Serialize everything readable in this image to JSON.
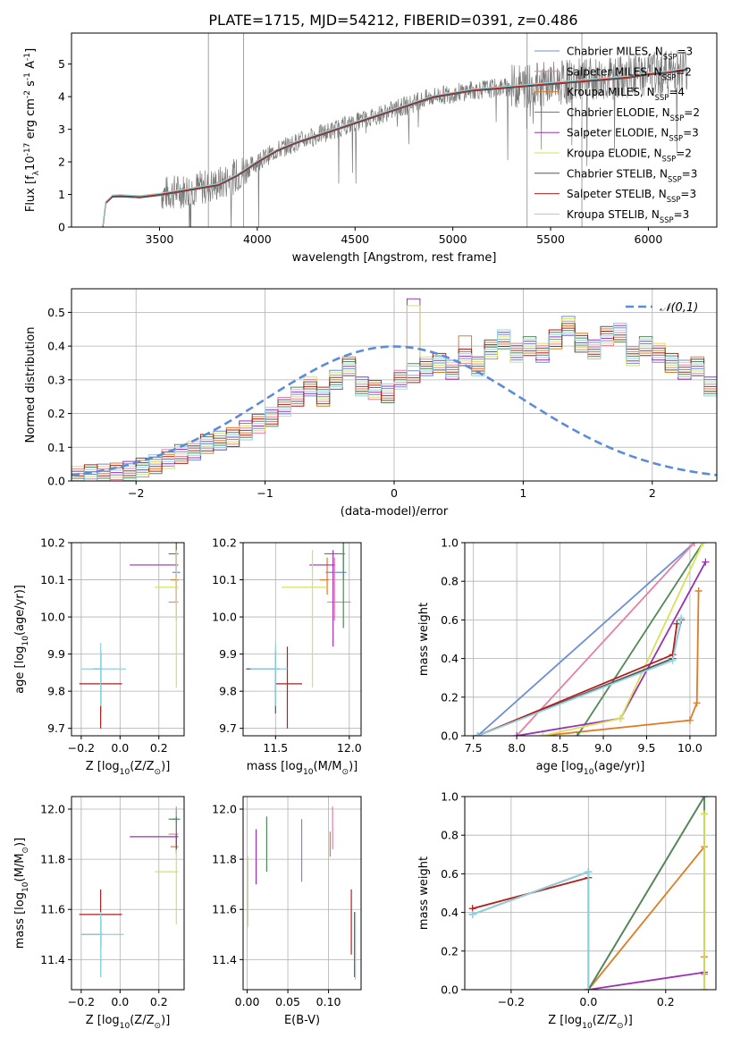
{
  "title": "PLATE=1715, MJD=54212, FIBERID=0391, z=0.486",
  "series": [
    {
      "name": "Chabrier MILES, N$_{SSP}$=3",
      "color": "#6b8fd6"
    },
    {
      "name": "Salpeter MILES, N$_{SSP}$=2",
      "color": "#e87fa3"
    },
    {
      "name": "Kroupa MILES, N$_{SSP}$=4",
      "color": "#e07b24"
    },
    {
      "name": "Chabrier ELODIE, N$_{SSP}$=2",
      "color": "#4e8a55"
    },
    {
      "name": "Salpeter ELODIE, N$_{SSP}$=3",
      "color": "#9b30b5"
    },
    {
      "name": "Kroupa ELODIE, N$_{SSP}$=2",
      "color": "#d7e256"
    },
    {
      "name": "Chabrier STELIB, N$_{SSP}$=3",
      "color": "#555555"
    },
    {
      "name": "Salpeter STELIB, N$_{SSP}$=3",
      "color": "#b31e1e"
    },
    {
      "name": "Kroupa STELIB, N$_{SSP}$=3",
      "color": "#8ed3e0"
    }
  ],
  "chart_data": [
    {
      "id": "spectrum",
      "type": "line",
      "xlabel": "wavelength [Angstrom, rest frame]",
      "ylabel": "Flux [f$_\\lambda$10$^{-17}$ erg cm$^{-2}$ s$^{-1}$ A$^{-1}$]",
      "xlim": [
        3050,
        6350
      ],
      "ylim": [
        0,
        5.95
      ],
      "xticks": [
        3500,
        4000,
        4500,
        5000,
        5500,
        6000
      ],
      "yticks": [
        0,
        1,
        2,
        3,
        4,
        5
      ],
      "legend": "right",
      "grid": false,
      "model_curve": [
        [
          3210,
          0.0
        ],
        [
          3225,
          0.75
        ],
        [
          3260,
          0.95
        ],
        [
          3300,
          0.96
        ],
        [
          3400,
          0.93
        ],
        [
          3500,
          1.0
        ],
        [
          3600,
          1.1
        ],
        [
          3700,
          1.2
        ],
        [
          3800,
          1.3
        ],
        [
          3900,
          1.6
        ],
        [
          4000,
          2.0
        ],
        [
          4100,
          2.35
        ],
        [
          4200,
          2.6
        ],
        [
          4300,
          2.8
        ],
        [
          4400,
          3.0
        ],
        [
          4500,
          3.2
        ],
        [
          4600,
          3.4
        ],
        [
          4700,
          3.6
        ],
        [
          4800,
          3.8
        ],
        [
          4900,
          4.0
        ],
        [
          5000,
          4.1
        ],
        [
          5100,
          4.2
        ],
        [
          5200,
          4.25
        ],
        [
          5300,
          4.3
        ],
        [
          5400,
          4.35
        ],
        [
          5500,
          4.4
        ],
        [
          5600,
          4.45
        ],
        [
          5700,
          4.5
        ],
        [
          5800,
          4.55
        ],
        [
          5900,
          4.6
        ],
        [
          6000,
          4.7
        ],
        [
          6100,
          4.75
        ],
        [
          6200,
          4.85
        ]
      ],
      "data_start": 3510,
      "data_end": 6200
    },
    {
      "id": "residuals",
      "type": "histogram",
      "xlabel": "(data-model)/error",
      "ylabel": "Normed distribution",
      "xlim": [
        -2.5,
        2.5
      ],
      "ylim": [
        0,
        0.57
      ],
      "xticks": [
        -2,
        -1,
        0,
        1,
        2
      ],
      "yticks": [
        0.0,
        0.1,
        0.2,
        0.3,
        0.4,
        0.5
      ],
      "grid": true,
      "reference": {
        "name": "$\\mathcal{N}(0,1)$",
        "color": "#5b8dd6"
      },
      "bin_width": 0.1,
      "base": [
        0.015,
        0.02,
        0.022,
        0.025,
        0.03,
        0.04,
        0.05,
        0.065,
        0.08,
        0.09,
        0.11,
        0.12,
        0.13,
        0.15,
        0.17,
        0.19,
        0.22,
        0.25,
        0.28,
        0.25,
        0.3,
        0.34,
        0.28,
        0.27,
        0.26,
        0.3,
        0.32,
        0.34,
        0.35,
        0.33,
        0.37,
        0.34,
        0.39,
        0.42,
        0.38,
        0.4,
        0.38,
        0.42,
        0.46,
        0.41,
        0.39,
        0.43,
        0.44,
        0.37,
        0.4,
        0.38,
        0.35,
        0.33,
        0.34,
        0.28,
        0.32,
        0.3,
        0.26,
        0.24,
        0.26,
        0.22,
        0.2,
        0.24,
        0.26,
        0.25,
        0.2,
        0.18,
        0.19,
        0.14,
        0.16,
        0.12,
        0.11,
        0.1,
        0.08,
        0.07,
        0.09,
        0.06,
        0.05,
        0.055,
        0.05
      ],
      "spikes": [
        {
          "series": 4,
          "bin": 26,
          "value": 0.54
        },
        {
          "series": 5,
          "bin": 26,
          "value": 0.52
        },
        {
          "series": 2,
          "bin": 30,
          "value": 0.43
        }
      ]
    },
    {
      "id": "z_age",
      "type": "scatter",
      "xlabel": "Z [log$_{10}$(Z/Z$_\\odot$)]",
      "ylabel": "age  [log$_{10}$(age/yr)]",
      "xlim": [
        -0.25,
        0.33
      ],
      "ylim": [
        9.68,
        10.2
      ],
      "xticks": [
        -0.2,
        0.0,
        0.2
      ],
      "yticks": [
        9.7,
        9.8,
        9.9,
        10.0,
        10.1,
        10.2
      ],
      "grid": true,
      "points": [
        {
          "s": 0,
          "x": 0.29,
          "y": 10.12,
          "ex": [
            0.02,
            0.02
          ],
          "ey": [
            0.02,
            0.08
          ]
        },
        {
          "s": 1,
          "x": 0.29,
          "y": 10.04,
          "ex": [
            0.04,
            0.01
          ],
          "ey": [
            0.05,
            0.12
          ]
        },
        {
          "s": 2,
          "x": 0.29,
          "y": 10.1,
          "ex": [
            0.03,
            0.01
          ],
          "ey": [
            0.06,
            0.1
          ]
        },
        {
          "s": 3,
          "x": 0.29,
          "y": 10.17,
          "ex": [
            0.04,
            0.01
          ],
          "ey": [
            0.08,
            0.04
          ]
        },
        {
          "s": 4,
          "x": 0.29,
          "y": 10.14,
          "ex": [
            0.24,
            0.01
          ],
          "ey": [
            0.1,
            0.04
          ]
        },
        {
          "s": 5,
          "x": 0.29,
          "y": 10.08,
          "ex": [
            0.11,
            0.01
          ],
          "ey": [
            0.27,
            0.1
          ]
        },
        {
          "s": 6,
          "x": -0.1,
          "y": 9.86,
          "ex": [
            0.04,
            0.01
          ],
          "ey": [
            0.12,
            0.05
          ]
        },
        {
          "s": 7,
          "x": -0.1,
          "y": 9.82,
          "ex": [
            0.11,
            0.11
          ],
          "ey": [
            0.12,
            0.08
          ]
        },
        {
          "s": 8,
          "x": -0.1,
          "y": 9.86,
          "ex": [
            0.1,
            0.13
          ],
          "ey": [
            0.1,
            0.07
          ]
        }
      ]
    },
    {
      "id": "mass_age",
      "type": "scatter",
      "xlabel": "mass [log$_{10}$(M/M$_\\odot$)]",
      "ylabel": "",
      "xlim": [
        11.28,
        12.08
      ],
      "ylim": [
        9.68,
        10.2
      ],
      "xticks": [
        11.5,
        12.0
      ],
      "yticks": [
        9.7,
        9.8,
        9.9,
        10.0,
        10.1,
        10.2
      ],
      "grid": true,
      "points": [
        {
          "s": 0,
          "x": 11.96,
          "y": 10.12,
          "ex": [
            0.12,
            0.02
          ],
          "ey": [
            0.02,
            0.08
          ]
        },
        {
          "s": 1,
          "x": 11.9,
          "y": 10.04,
          "ex": [
            0.05,
            0.11
          ],
          "ey": [
            0.05,
            0.12
          ]
        },
        {
          "s": 2,
          "x": 11.85,
          "y": 10.1,
          "ex": [
            0.05,
            0.01
          ],
          "ey": [
            0.04,
            0.06
          ]
        },
        {
          "s": 3,
          "x": 11.96,
          "y": 10.17,
          "ex": [
            0.13,
            0.01
          ],
          "ey": [
            0.2,
            0.03
          ]
        },
        {
          "s": 4,
          "x": 11.89,
          "y": 10.14,
          "ex": [
            0.16,
            0.01
          ],
          "ey": [
            0.22,
            0.04
          ]
        },
        {
          "s": 5,
          "x": 11.75,
          "y": 10.08,
          "ex": [
            0.21,
            0.1
          ],
          "ey": [
            0.27,
            0.1
          ]
        },
        {
          "s": 6,
          "x": 11.5,
          "y": 9.86,
          "ex": [
            0.2,
            0.03
          ],
          "ey": [
            0.12,
            0.05
          ]
        },
        {
          "s": 7,
          "x": 11.58,
          "y": 9.82,
          "ex": [
            0.08,
            0.1
          ],
          "ey": [
            0.12,
            0.1
          ]
        },
        {
          "s": 8,
          "x": 11.5,
          "y": 9.86,
          "ex": [
            0.17,
            0.08
          ],
          "ey": [
            0.1,
            0.07
          ]
        }
      ]
    },
    {
      "id": "age_weight",
      "type": "line",
      "xlabel": "age  [log$_{10}$(age/yr)]",
      "ylabel": "mass weight",
      "xlim": [
        7.4,
        10.3
      ],
      "ylim": [
        0,
        1.0
      ],
      "xticks": [
        7.5,
        8.0,
        8.5,
        9.0,
        9.5,
        10.0
      ],
      "yticks": [
        0.0,
        0.2,
        0.4,
        0.6,
        0.8,
        1.0
      ],
      "grid": true,
      "lines": [
        {
          "s": 0,
          "points": [
            [
              7.55,
              0.0
            ],
            [
              10.05,
              1.0
            ]
          ]
        },
        {
          "s": 1,
          "points": [
            [
              8.0,
              0.0
            ],
            [
              10.05,
              1.0
            ]
          ]
        },
        {
          "s": 2,
          "points": [
            [
              8.3,
              0.0
            ],
            [
              10.0,
              0.08
            ],
            [
              10.08,
              0.17
            ],
            [
              10.1,
              0.75
            ],
            [
              10.1,
              0.75
            ]
          ]
        },
        {
          "s": 3,
          "points": [
            [
              8.7,
              0.0
            ],
            [
              10.15,
              1.0
            ]
          ]
        },
        {
          "s": 4,
          "points": [
            [
              8.0,
              0.0
            ],
            [
              9.2,
              0.09
            ],
            [
              10.18,
              0.9
            ]
          ]
        },
        {
          "s": 5,
          "points": [
            [
              8.3,
              0.0
            ],
            [
              9.2,
              0.09
            ],
            [
              10.15,
              1.0
            ]
          ]
        },
        {
          "s": 6,
          "points": [
            [
              7.55,
              0.0
            ],
            [
              9.8,
              0.4
            ],
            [
              9.9,
              0.6
            ]
          ]
        },
        {
          "s": 7,
          "points": [
            [
              7.55,
              0.0
            ],
            [
              9.8,
              0.42
            ],
            [
              9.85,
              0.58
            ]
          ]
        },
        {
          "s": 8,
          "points": [
            [
              7.55,
              0.0
            ],
            [
              9.8,
              0.39
            ],
            [
              9.9,
              0.61
            ]
          ]
        }
      ]
    },
    {
      "id": "z_mass",
      "type": "scatter",
      "xlabel": "Z [log$_{10}$(Z/Z$_\\odot$)]",
      "ylabel": "mass [log$_{10}$(M/M$_\\odot$)]",
      "xlim": [
        -0.25,
        0.33
      ],
      "ylim": [
        11.28,
        12.05
      ],
      "xticks": [
        -0.2,
        0.0,
        0.2
      ],
      "yticks": [
        11.4,
        11.6,
        11.8,
        12.0
      ],
      "grid": true,
      "points": [
        {
          "s": 0,
          "x": 0.29,
          "y": 11.96,
          "ex": [
            0.02,
            0.02
          ],
          "ey": [
            0.02,
            0.04
          ]
        },
        {
          "s": 1,
          "x": 0.29,
          "y": 11.9,
          "ex": [
            0.04,
            0.01
          ],
          "ey": [
            0.04,
            0.11
          ]
        },
        {
          "s": 2,
          "x": 0.29,
          "y": 11.85,
          "ex": [
            0.03,
            0.01
          ],
          "ey": [
            0.03,
            0.05
          ]
        },
        {
          "s": 3,
          "x": 0.29,
          "y": 11.96,
          "ex": [
            0.04,
            0.01
          ],
          "ey": [
            0.13,
            0.01
          ]
        },
        {
          "s": 4,
          "x": 0.29,
          "y": 11.89,
          "ex": [
            0.24,
            0.01
          ],
          "ey": [
            0.06,
            0.01
          ]
        },
        {
          "s": 5,
          "x": 0.29,
          "y": 11.75,
          "ex": [
            0.11,
            0.01
          ],
          "ey": [
            0.21,
            0.09
          ]
        },
        {
          "s": 6,
          "x": -0.1,
          "y": 11.5,
          "ex": [
            0.1,
            0.01
          ],
          "ey": [
            0.17,
            0.06
          ]
        },
        {
          "s": 7,
          "x": -0.1,
          "y": 11.58,
          "ex": [
            0.11,
            0.11
          ],
          "ey": [
            0.13,
            0.1
          ]
        },
        {
          "s": 8,
          "x": -0.1,
          "y": 11.5,
          "ex": [
            0.1,
            0.12
          ],
          "ey": [
            0.17,
            0.09
          ]
        }
      ]
    },
    {
      "id": "ebv_mass",
      "type": "scatter",
      "xlabel": "E(B-V)",
      "ylabel": "",
      "xlim": [
        -0.005,
        0.14
      ],
      "ylim": [
        11.28,
        12.05
      ],
      "xticks": [
        0.0,
        0.05,
        0.1
      ],
      "yticks": [
        11.4,
        11.6,
        11.8,
        12.0
      ],
      "grid": true,
      "points": [
        {
          "s": 0,
          "x": 0.067,
          "y": 11.83,
          "ey": [
            0.12,
            0.13
          ]
        },
        {
          "s": 1,
          "x": 0.105,
          "y": 11.93,
          "ey": [
            0.09,
            0.08
          ]
        },
        {
          "s": 2,
          "x": 0.102,
          "y": 11.85,
          "ey": [
            0.04,
            0.06
          ]
        },
        {
          "s": 3,
          "x": 0.024,
          "y": 11.85,
          "ey": [
            0.1,
            0.12
          ]
        },
        {
          "s": 4,
          "x": 0.011,
          "y": 11.8,
          "ey": [
            0.1,
            0.12
          ]
        },
        {
          "s": 5,
          "x": 0.001,
          "y": 11.67,
          "ey": [
            0.14,
            0.14
          ]
        },
        {
          "s": 6,
          "x": 0.132,
          "y": 11.45,
          "ey": [
            0.12,
            0.14
          ]
        },
        {
          "s": 7,
          "x": 0.128,
          "y": 11.55,
          "ey": [
            0.13,
            0.13
          ]
        },
        {
          "s": 8,
          "x": 0.133,
          "y": 11.42,
          "ey": [
            0.1,
            0.17
          ]
        }
      ]
    },
    {
      "id": "z_weight",
      "type": "line",
      "xlabel": "Z [log$_{10}$(Z/Z$_\\odot$)]",
      "ylabel": "mass weight",
      "xlim": [
        -0.32,
        0.33
      ],
      "ylim": [
        0,
        1.0
      ],
      "xticks": [
        -0.2,
        0.0,
        0.2
      ],
      "yticks": [
        0.0,
        0.2,
        0.4,
        0.6,
        0.8,
        1.0
      ],
      "grid": true,
      "lines": [
        {
          "s": 0,
          "points": [
            [
              0.0,
              0.0
            ],
            [
              0.3,
              1.0
            ]
          ]
        },
        {
          "s": 1,
          "points": [
            [
              0.0,
              0.0
            ],
            [
              0.3,
              1.0
            ]
          ]
        },
        {
          "s": 2,
          "points": [
            [
              0.0,
              0.0
            ],
            [
              0.3,
              0.74
            ],
            [
              0.3,
              0.91
            ],
            [
              0.3,
              0.17
            ],
            [
              0.3,
              0.08
            ]
          ]
        },
        {
          "s": 3,
          "points": [
            [
              0.0,
              0.0
            ],
            [
              0.3,
              1.0
            ],
            [
              0.3,
              0.0
            ]
          ]
        },
        {
          "s": 4,
          "points": [
            [
              0.0,
              0.0
            ],
            [
              0.3,
              0.09
            ]
          ]
        },
        {
          "s": 5,
          "points": [
            [
              0.3,
              0.0
            ],
            [
              0.3,
              0.91
            ]
          ]
        },
        {
          "s": 6,
          "points": [
            [
              -0.3,
              0.39
            ],
            [
              0.0,
              0.61
            ],
            [
              0.0,
              0.0
            ]
          ]
        },
        {
          "s": 7,
          "points": [
            [
              -0.3,
              0.42
            ],
            [
              0.0,
              0.58
            ]
          ]
        },
        {
          "s": 8,
          "points": [
            [
              -0.3,
              0.39
            ],
            [
              0.0,
              0.61
            ],
            [
              0.0,
              0.0
            ]
          ]
        }
      ]
    }
  ]
}
